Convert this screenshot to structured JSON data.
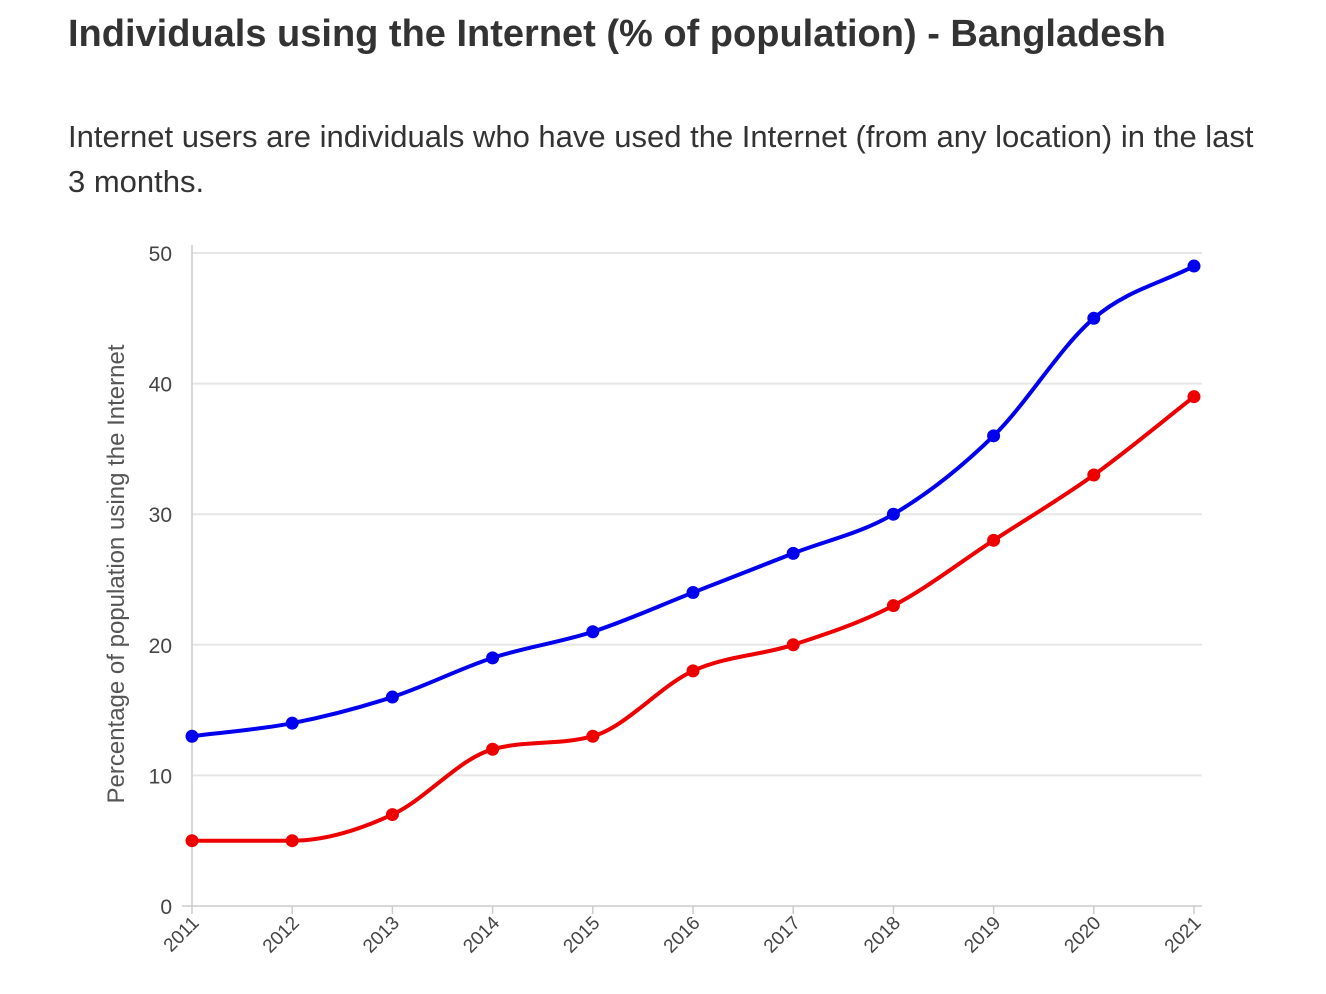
{
  "title": "Individuals using the Internet (% of population) - Bangladesh",
  "subtitle": "Internet users are individuals who have used the Internet (from any location) in the last 3 months.",
  "chart_data": {
    "type": "line",
    "title": "Individuals using the Internet (% of population) - Bangladesh",
    "subtitle": "Internet users are individuals who have used the Internet (from any location) in the last 3 months.",
    "xlabel": "",
    "ylabel": "Percentage of population using the Internet",
    "categories": [
      "2011",
      "2012",
      "2013",
      "2014",
      "2015",
      "2016",
      "2017",
      "2018",
      "2019",
      "2020",
      "2021"
    ],
    "ylim": [
      0,
      50
    ],
    "yticks": [
      0,
      10,
      20,
      30,
      40,
      50
    ],
    "grid": true,
    "legend": "none",
    "series": [
      {
        "color": "#0000ee",
        "values": [
          13,
          14,
          16,
          19,
          21,
          24,
          27,
          30,
          36,
          45,
          49
        ]
      },
      {
        "color": "#ee0000",
        "values": [
          5,
          5,
          7,
          12,
          13,
          18,
          20,
          23,
          28,
          33,
          39
        ]
      }
    ]
  }
}
